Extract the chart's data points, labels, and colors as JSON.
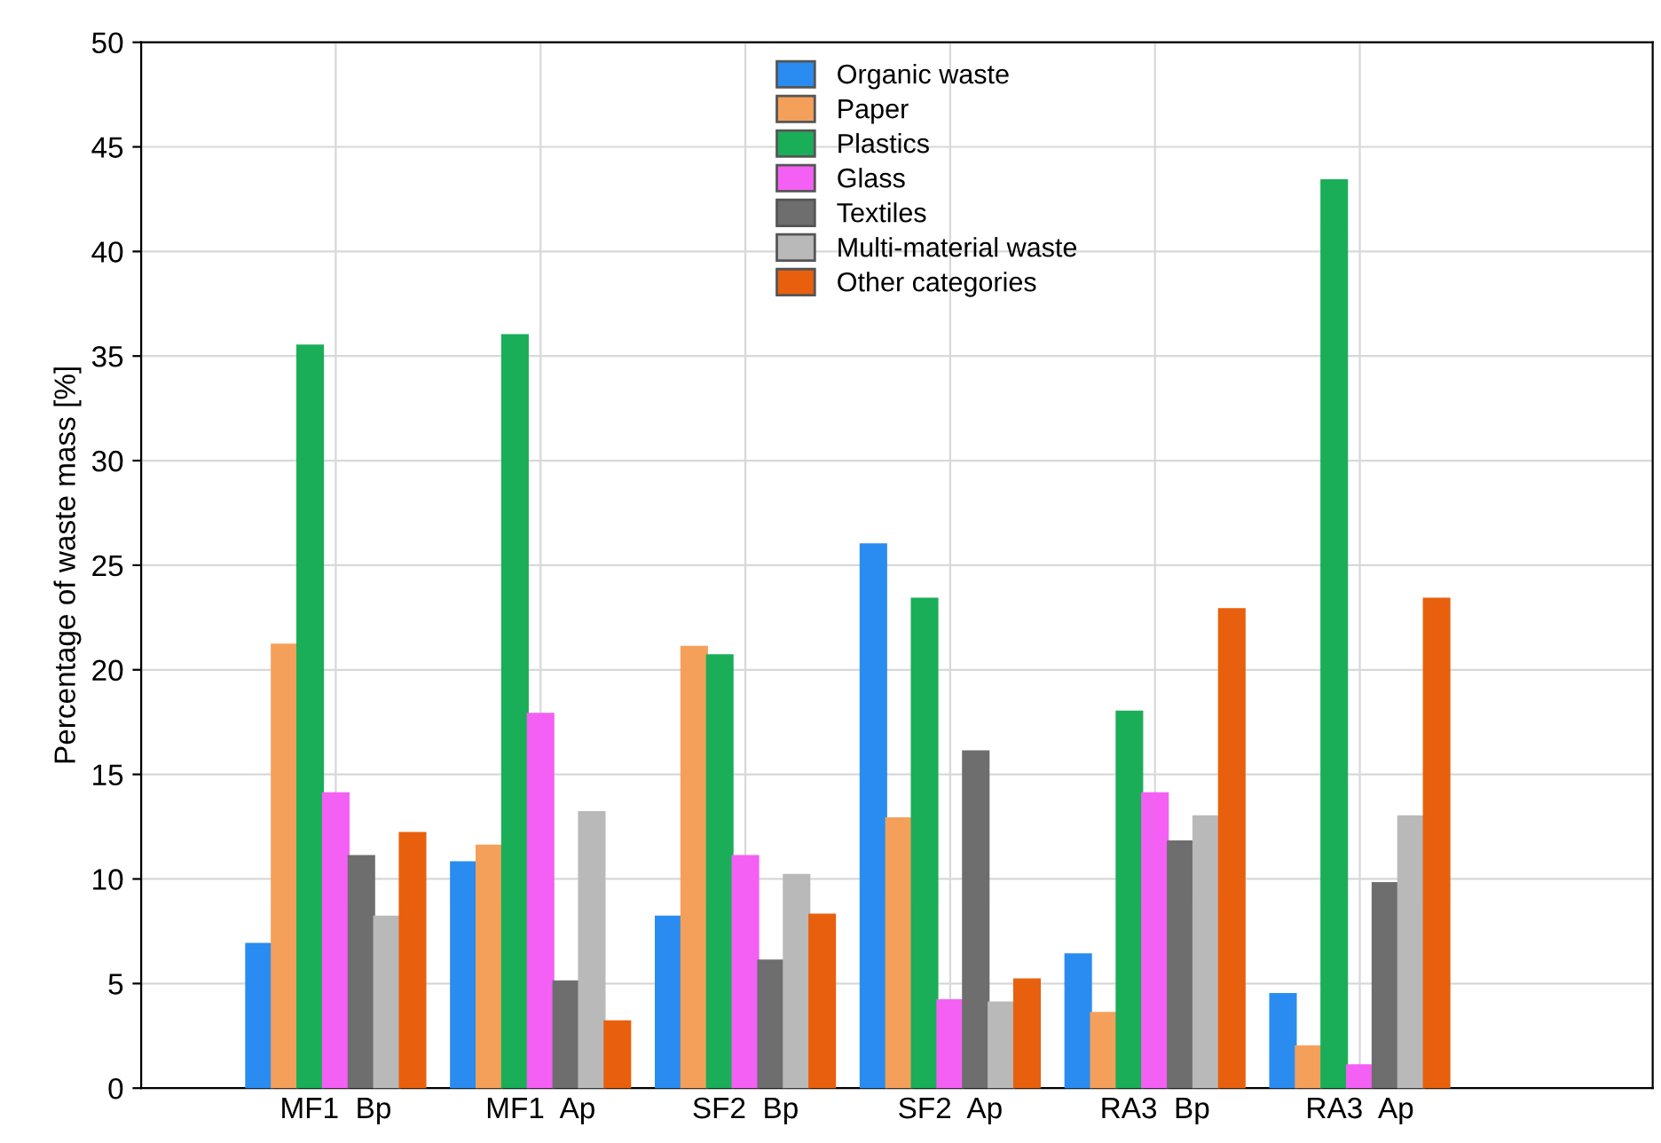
{
  "chart_data": {
    "type": "bar",
    "ylabel": "Percentage of waste mass [%]",
    "categories": [
      "MF1  Bp",
      "MF1  Ap",
      "SF2  Bp",
      "SF2  Ap",
      "RA3  Bp",
      "RA3  Ap"
    ],
    "series": [
      {
        "name": "Organic waste",
        "color": "#2a8cf0",
        "values": [
          6.9,
          10.8,
          8.2,
          26.0,
          6.4,
          4.5
        ]
      },
      {
        "name": "Paper",
        "color": "#f5a05a",
        "values": [
          21.2,
          11.6,
          21.1,
          12.9,
          3.6,
          2.0
        ]
      },
      {
        "name": "Plastics",
        "color": "#1aae58",
        "values": [
          35.5,
          36.0,
          20.7,
          23.4,
          18.0,
          43.4
        ]
      },
      {
        "name": "Glass",
        "color": "#f460f4",
        "values": [
          14.1,
          17.9,
          11.1,
          4.2,
          14.1,
          1.1
        ]
      },
      {
        "name": "Textiles",
        "color": "#6e6e6e",
        "values": [
          11.1,
          5.1,
          6.1,
          16.1,
          11.8,
          9.8
        ]
      },
      {
        "name": "Multi-material waste",
        "color": "#b9b9b9",
        "values": [
          8.2,
          13.2,
          10.2,
          4.1,
          13.0,
          13.0
        ]
      },
      {
        "name": "Other categories",
        "color": "#e8600e",
        "values": [
          12.2,
          3.2,
          8.3,
          5.2,
          22.9,
          23.4
        ]
      }
    ],
    "ylim": [
      0,
      50
    ],
    "yticks": [
      0,
      5,
      10,
      15,
      20,
      25,
      30,
      35,
      40,
      45,
      50
    ],
    "grid": true,
    "legend": "top"
  }
}
